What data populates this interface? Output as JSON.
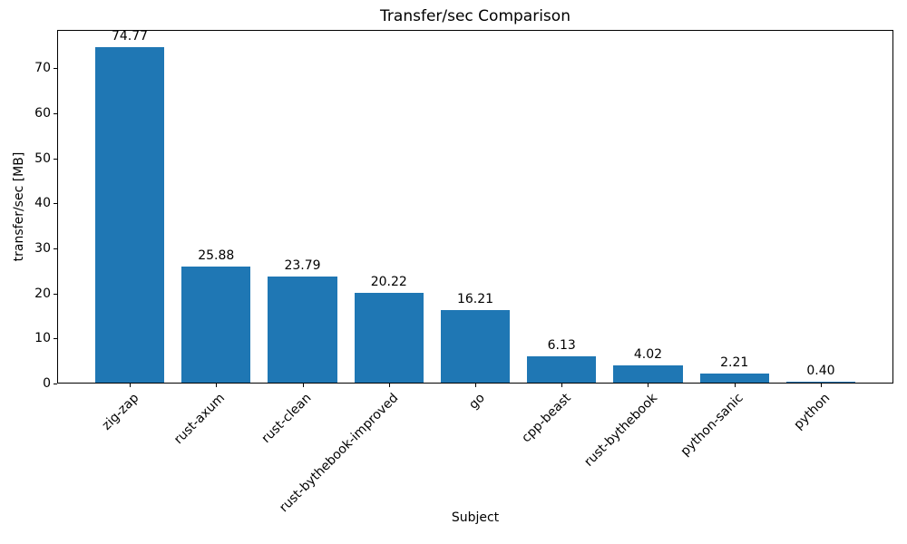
{
  "chart_data": {
    "type": "bar",
    "title": "Transfer/sec Comparison",
    "xlabel": "Subject",
    "ylabel": "transfer/sec [MB]",
    "categories": [
      "zig-zap",
      "rust-axum",
      "rust-clean",
      "rust-bythebook-improved",
      "go",
      "cpp-beast",
      "rust-bythebook",
      "python-sanic",
      "python"
    ],
    "values": [
      74.77,
      25.88,
      23.79,
      20.22,
      16.21,
      6.13,
      4.02,
      2.21,
      0.4
    ],
    "value_labels": [
      "74.77",
      "25.88",
      "23.79",
      "20.22",
      "16.21",
      "6.13",
      "4.02",
      "2.21",
      "0.40"
    ],
    "bar_color": "#1f77b4",
    "text_color": "#000000",
    "ylim": [
      0,
      78.5
    ],
    "yticks": [
      0,
      10,
      20,
      30,
      40,
      50,
      60,
      70
    ],
    "grid": false,
    "legend": false,
    "bar_width_fraction": 0.8,
    "xtick_rotation_deg": 45
  }
}
